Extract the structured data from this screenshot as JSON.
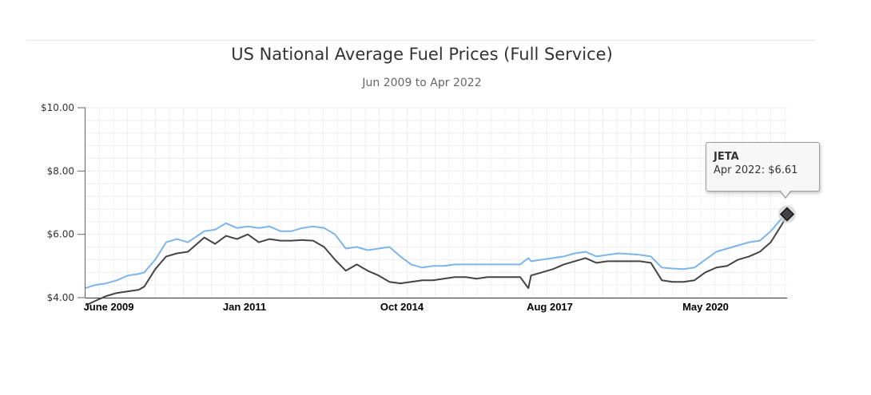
{
  "chart_data": {
    "type": "line",
    "title": "US National Average Fuel Prices (Full Service)",
    "subtitle": "Jun 2009 to Apr 2022",
    "xlabel": "",
    "ylabel": "",
    "x_tick_labels": [
      "June 2009",
      "Jan 2011",
      "Oct 2014",
      "Aug 2017",
      "May 2020"
    ],
    "y_tick_labels": [
      "$4.00",
      "$6.00",
      "$8.00",
      "$10.00"
    ],
    "ylim": [
      4,
      10
    ],
    "grid": true,
    "colors": {
      "series_upper": "#7cb5ec",
      "series_lower": "#434348"
    },
    "series": [
      {
        "name": "",
        "x": [
          2009.42,
          2009.6,
          2009.8,
          2010.0,
          2010.2,
          2010.4,
          2010.5,
          2010.7,
          2010.9,
          2011.1,
          2011.3,
          2011.6,
          2011.8,
          2012.0,
          2012.2,
          2012.4,
          2012.6,
          2012.8,
          2013.0,
          2013.2,
          2013.4,
          2013.6,
          2013.8,
          2014.0,
          2014.2,
          2014.4,
          2014.6,
          2014.8,
          2015.0,
          2015.2,
          2015.4,
          2015.6,
          2015.8,
          2016.0,
          2016.2,
          2016.4,
          2016.6,
          2016.8,
          2017.0,
          2017.2,
          2017.4,
          2017.55,
          2017.6,
          2017.8,
          2018.0,
          2018.2,
          2018.4,
          2018.6,
          2018.8,
          2019.0,
          2019.2,
          2019.4,
          2019.6,
          2019.8,
          2020.0,
          2020.2,
          2020.4,
          2020.6,
          2020.8,
          2021.0,
          2021.2,
          2021.4,
          2021.6,
          2021.8,
          2022.0,
          2022.2,
          2022.3
        ],
        "values": [
          4.3,
          4.4,
          4.45,
          4.55,
          4.7,
          4.75,
          4.8,
          5.2,
          5.75,
          5.85,
          5.75,
          6.1,
          6.15,
          6.35,
          6.2,
          6.25,
          6.2,
          6.25,
          6.1,
          6.1,
          6.2,
          6.25,
          6.2,
          6.0,
          5.55,
          5.6,
          5.5,
          5.55,
          5.6,
          5.3,
          5.05,
          4.95,
          5.0,
          5.0,
          5.05,
          5.05,
          5.05,
          5.05,
          5.05,
          5.05,
          5.05,
          5.25,
          5.15,
          5.2,
          5.25,
          5.3,
          5.4,
          5.45,
          5.3,
          5.35,
          5.4,
          5.38,
          5.35,
          5.3,
          4.95,
          4.92,
          4.9,
          4.95,
          5.2,
          5.45,
          5.55,
          5.65,
          5.75,
          5.8,
          6.1,
          6.5,
          6.61
        ]
      },
      {
        "name": "JETA",
        "x": [
          2009.42,
          2009.6,
          2009.8,
          2010.0,
          2010.2,
          2010.4,
          2010.5,
          2010.7,
          2010.9,
          2011.1,
          2011.3,
          2011.6,
          2011.8,
          2012.0,
          2012.2,
          2012.4,
          2012.6,
          2012.8,
          2013.0,
          2013.2,
          2013.4,
          2013.6,
          2013.8,
          2014.0,
          2014.2,
          2014.4,
          2014.6,
          2014.8,
          2015.0,
          2015.2,
          2015.4,
          2015.6,
          2015.8,
          2016.0,
          2016.2,
          2016.4,
          2016.6,
          2016.8,
          2017.0,
          2017.2,
          2017.4,
          2017.55,
          2017.6,
          2017.8,
          2018.0,
          2018.2,
          2018.4,
          2018.6,
          2018.8,
          2019.0,
          2019.2,
          2019.4,
          2019.6,
          2019.8,
          2020.0,
          2020.2,
          2020.4,
          2020.6,
          2020.8,
          2021.0,
          2021.2,
          2021.4,
          2021.6,
          2021.8,
          2022.0,
          2022.2,
          2022.3
        ],
        "values": [
          3.75,
          3.9,
          4.05,
          4.15,
          4.2,
          4.25,
          4.35,
          4.9,
          5.3,
          5.4,
          5.45,
          5.9,
          5.7,
          5.95,
          5.85,
          6.0,
          5.75,
          5.85,
          5.8,
          5.8,
          5.82,
          5.8,
          5.6,
          5.2,
          4.85,
          5.05,
          4.85,
          4.7,
          4.5,
          4.45,
          4.5,
          4.55,
          4.55,
          4.6,
          4.65,
          4.65,
          4.6,
          4.65,
          4.65,
          4.65,
          4.65,
          4.3,
          4.7,
          4.8,
          4.9,
          5.05,
          5.15,
          5.25,
          5.1,
          5.15,
          5.15,
          5.15,
          5.15,
          5.1,
          4.55,
          4.5,
          4.5,
          4.55,
          4.8,
          4.95,
          5.0,
          5.2,
          5.3,
          5.45,
          5.75,
          6.3,
          6.61
        ]
      }
    ],
    "tooltip": {
      "series": "JETA",
      "text": "Apr 2022: $6.61"
    }
  }
}
